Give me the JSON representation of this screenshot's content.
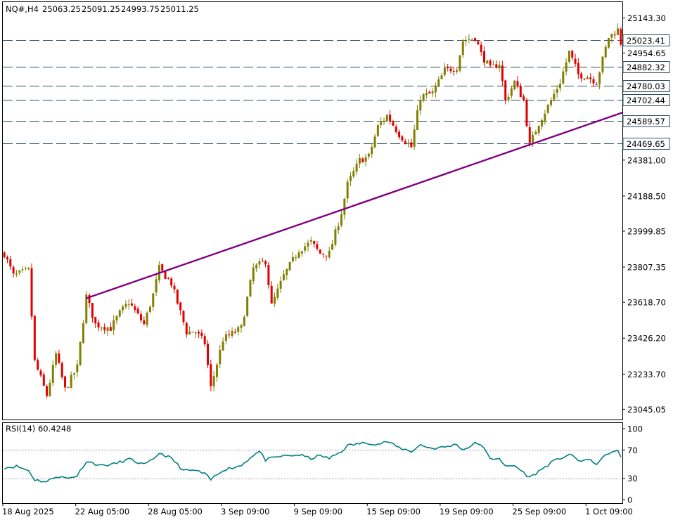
{
  "chart_data": [
    {
      "type": "candlestick",
      "symbol": "NQ#,H4",
      "ohlc": [
        "25063.25",
        "25091.25",
        "24993.75",
        "25011.25"
      ],
      "y_range": [
        22990,
        25228
      ],
      "price_ticks": [
        "25143.30",
        "24954.65",
        "24381.00",
        "24188.50",
        "23999.85",
        "23807.35",
        "23618.70",
        "23426.20",
        "23233.70",
        "23045.05"
      ],
      "level_lines": [
        {
          "value": 25023.41,
          "label": "25023.41"
        },
        {
          "value": 24882.32,
          "label": "24882.32"
        },
        {
          "value": 24780.03,
          "label": "24780.03"
        },
        {
          "value": 24702.44,
          "label": "24702.44"
        },
        {
          "value": 24589.57,
          "label": "24589.57"
        },
        {
          "value": 24469.65,
          "label": "24469.65"
        }
      ],
      "trendline": {
        "start": {
          "bar": 27,
          "price": 23640
        },
        "end": {
          "bar": 230,
          "price": 24785
        }
      },
      "x_tick_labels": [
        "18 Aug 2025",
        "22 Aug 05:00",
        "28 Aug 05:00",
        "3 Sep 09:00",
        "9 Sep 09:00",
        "15 Sep 09:00",
        "19 Sep 09:00",
        "25 Sep 09:00",
        "1 Oct 09:00"
      ],
      "x_tick_bars": [
        0,
        24,
        48,
        72,
        96,
        120,
        144,
        168,
        192
      ],
      "anchors": [
        [
          0,
          23880
        ],
        [
          3,
          23760
        ],
        [
          8,
          23790
        ],
        [
          10,
          23300
        ],
        [
          14,
          23120
        ],
        [
          17,
          23340
        ],
        [
          20,
          23150
        ],
        [
          24,
          23270
        ],
        [
          27,
          23650
        ],
        [
          30,
          23500
        ],
        [
          35,
          23480
        ],
        [
          38,
          23560
        ],
        [
          41,
          23620
        ],
        [
          46,
          23500
        ],
        [
          49,
          23660
        ],
        [
          51,
          23800
        ],
        [
          55,
          23720
        ],
        [
          60,
          23460
        ],
        [
          63,
          23460
        ],
        [
          66,
          23400
        ],
        [
          68,
          23160
        ],
        [
          72,
          23420
        ],
        [
          78,
          23480
        ],
        [
          82,
          23800
        ],
        [
          86,
          23840
        ],
        [
          88,
          23600
        ],
        [
          92,
          23760
        ],
        [
          97,
          23900
        ],
        [
          101,
          23940
        ],
        [
          104,
          23880
        ],
        [
          107,
          23880
        ],
        [
          111,
          24100
        ],
        [
          113,
          24250
        ],
        [
          117,
          24380
        ],
        [
          120,
          24400
        ],
        [
          123,
          24560
        ],
        [
          126,
          24620
        ],
        [
          130,
          24520
        ],
        [
          134,
          24450
        ],
        [
          137,
          24720
        ],
        [
          141,
          24740
        ],
        [
          145,
          24860
        ],
        [
          149,
          24880
        ],
        [
          151,
          25020
        ],
        [
          155,
          25040
        ],
        [
          157,
          24950
        ],
        [
          160,
          24870
        ],
        [
          163,
          24900
        ],
        [
          165,
          24700
        ],
        [
          168,
          24800
        ],
        [
          171,
          24700
        ],
        [
          173,
          24460
        ],
        [
          176,
          24580
        ],
        [
          180,
          24700
        ],
        [
          183,
          24800
        ],
        [
          186,
          24960
        ],
        [
          189,
          24840
        ],
        [
          192,
          24830
        ],
        [
          195,
          24800
        ],
        [
          197,
          24920
        ],
        [
          199,
          25040
        ],
        [
          202,
          25080
        ],
        [
          203,
          25010
        ]
      ]
    },
    {
      "type": "line",
      "label": "RSI(14) 60.4248",
      "y_range": [
        0,
        100
      ],
      "y_ticks": [
        "100",
        "70",
        "30",
        "0"
      ],
      "ref_levels": [
        70,
        30
      ],
      "anchors": [
        [
          0,
          45
        ],
        [
          4,
          47
        ],
        [
          8,
          41
        ],
        [
          10,
          28
        ],
        [
          14,
          25
        ],
        [
          17,
          33
        ],
        [
          21,
          30
        ],
        [
          24,
          34
        ],
        [
          27,
          54
        ],
        [
          32,
          48
        ],
        [
          36,
          50
        ],
        [
          41,
          57
        ],
        [
          46,
          49
        ],
        [
          49,
          56
        ],
        [
          51,
          66
        ],
        [
          55,
          58
        ],
        [
          59,
          41
        ],
        [
          63,
          41
        ],
        [
          66,
          36
        ],
        [
          68,
          28
        ],
        [
          72,
          42
        ],
        [
          78,
          48
        ],
        [
          82,
          63
        ],
        [
          84,
          68
        ],
        [
          86,
          56
        ],
        [
          91,
          61
        ],
        [
          97,
          63
        ],
        [
          101,
          58
        ],
        [
          104,
          62
        ],
        [
          107,
          58
        ],
        [
          111,
          68
        ],
        [
          113,
          76
        ],
        [
          117,
          79
        ],
        [
          120,
          80
        ],
        [
          123,
          78
        ],
        [
          126,
          82
        ],
        [
          130,
          73
        ],
        [
          134,
          68
        ],
        [
          137,
          77
        ],
        [
          141,
          72
        ],
        [
          145,
          74
        ],
        [
          149,
          78
        ],
        [
          151,
          70
        ],
        [
          155,
          79
        ],
        [
          157,
          78
        ],
        [
          160,
          57
        ],
        [
          163,
          59
        ],
        [
          165,
          46
        ],
        [
          168,
          48
        ],
        [
          171,
          38
        ],
        [
          173,
          31
        ],
        [
          176,
          40
        ],
        [
          180,
          52
        ],
        [
          183,
          58
        ],
        [
          186,
          64
        ],
        [
          189,
          55
        ],
        [
          192,
          56
        ],
        [
          195,
          51
        ],
        [
          197,
          58
        ],
        [
          199,
          66
        ],
        [
          202,
          68
        ],
        [
          203,
          60
        ]
      ]
    }
  ]
}
